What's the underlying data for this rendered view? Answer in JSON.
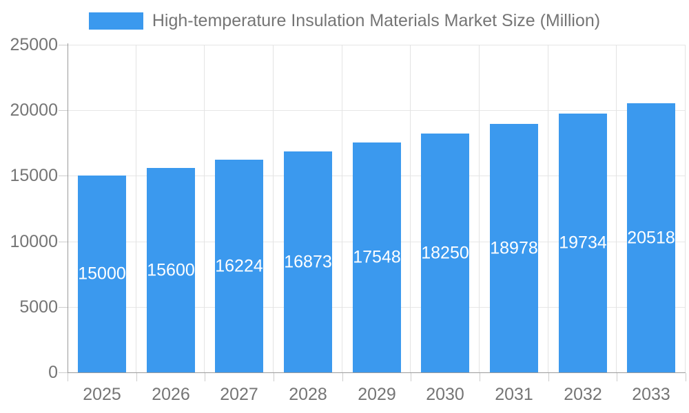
{
  "chart_data": {
    "type": "bar",
    "title": "High-temperature Insulation Materials Market Size (Million)",
    "legend": [
      "High-temperature Insulation Materials Market Size (Million)"
    ],
    "legend_position": "top",
    "categories": [
      "2025",
      "2026",
      "2027",
      "2028",
      "2029",
      "2030",
      "2031",
      "2032",
      "2033"
    ],
    "values": [
      15000,
      15600,
      16224,
      16873,
      17548,
      18250,
      18978,
      19734,
      20518
    ],
    "bar_value_labels": [
      "15000",
      "15600",
      "16224",
      "16873",
      "17548",
      "18250",
      "18978",
      "19734",
      "20518"
    ],
    "xlabel": "",
    "ylabel": "",
    "ylim": [
      0,
      25000
    ],
    "yticks": [
      0,
      5000,
      10000,
      15000,
      20000,
      25000
    ],
    "ytick_labels": [
      "0",
      "5000",
      "10000",
      "15000",
      "20000",
      "25000"
    ],
    "grid": true,
    "colors": {
      "bar": "#3B99EE",
      "text": "#757575",
      "grid_h": "#E6E6E6",
      "grid_v": "#E3E3E3",
      "axis": "#9A9A9A",
      "tick": "#CCCCCC",
      "bar_label": "#FFFFFF",
      "background": "#FFFFFF"
    }
  }
}
